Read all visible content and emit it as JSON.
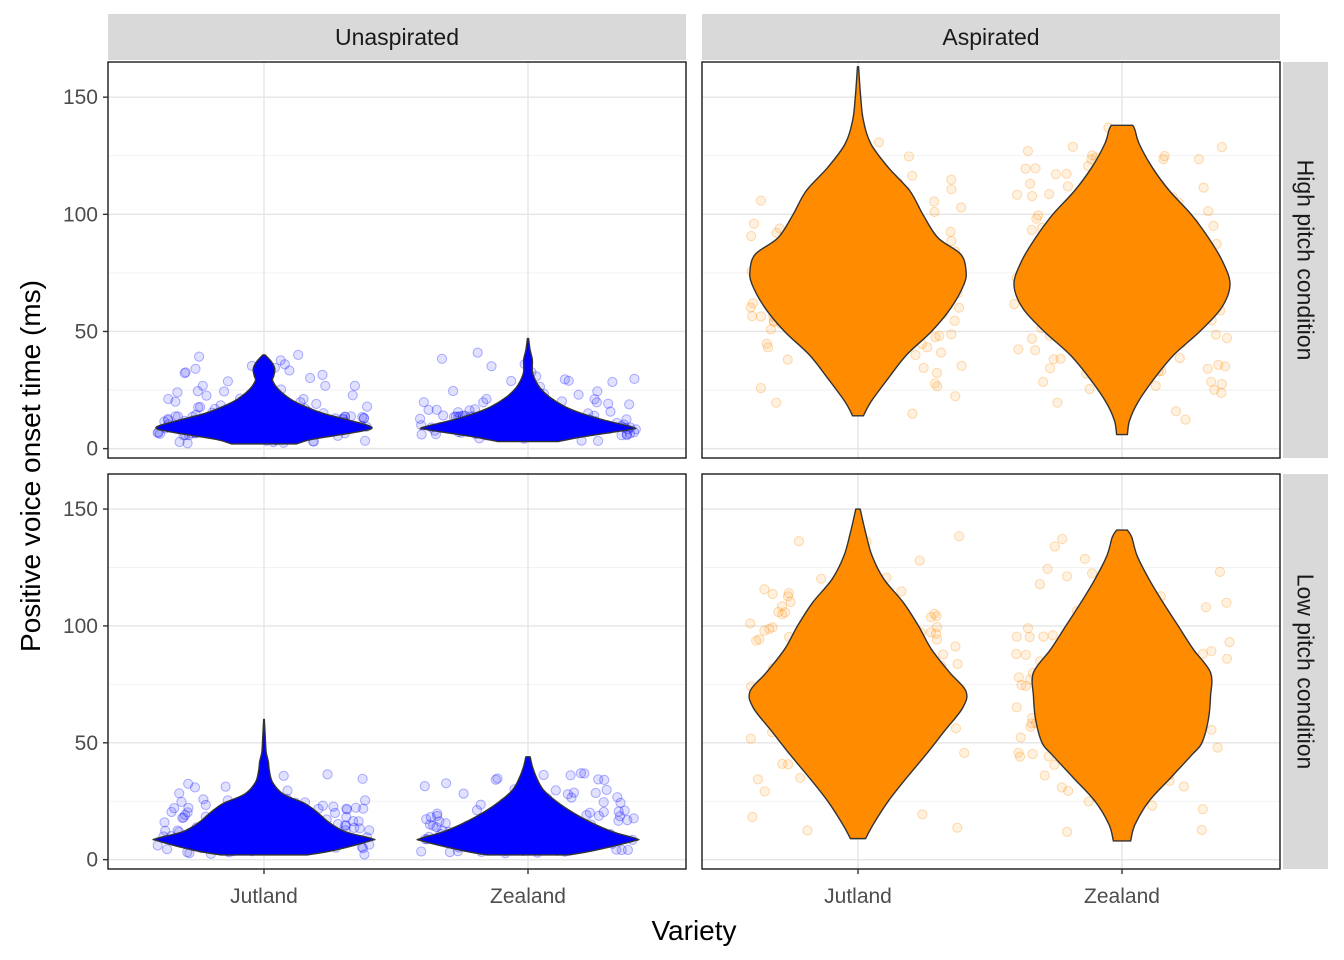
{
  "chart_data": {
    "type": "violin",
    "xlabel": "Variety",
    "ylabel": "Positive voice onset time (ms)",
    "ylim": [
      -4,
      165
    ],
    "y_ticks": [
      0,
      50,
      100,
      150
    ],
    "categories": [
      "Jutland",
      "Zealand"
    ],
    "column_facets": [
      "Unaspirated",
      "Aspirated"
    ],
    "row_facets": [
      "High pitch condition",
      "Low pitch condition"
    ],
    "grid": true,
    "jittered_points": true,
    "colors": {
      "unaspirated_fill": "#0000ff",
      "aspirated_fill": "#ff8c00",
      "violin_outline": "#333333",
      "strip_background": "#d9d9d9",
      "panel_border": "#1a1a1a",
      "grid_major": "#e5e5e5",
      "grid_minor": "#f2f2f2"
    },
    "panels": [
      {
        "row": "High pitch condition",
        "col": "Unaspirated",
        "violins": [
          {
            "category": "Jutland",
            "min": 2,
            "max": 40,
            "profile": [
              [
                2,
                0.3
              ],
              [
                4,
                0.45
              ],
              [
                7,
                0.85
              ],
              [
                9,
                1.0
              ],
              [
                12,
                0.8
              ],
              [
                15,
                0.55
              ],
              [
                18,
                0.38
              ],
              [
                21,
                0.25
              ],
              [
                25,
                0.14
              ],
              [
                29,
                0.08
              ],
              [
                31,
                0.09
              ],
              [
                34,
                0.1
              ],
              [
                37,
                0.07
              ],
              [
                40,
                0.01
              ]
            ]
          },
          {
            "category": "Zealand",
            "min": 3,
            "max": 47,
            "profile": [
              [
                3,
                0.28
              ],
              [
                5,
                0.5
              ],
              [
                8,
                0.92
              ],
              [
                9,
                0.98
              ],
              [
                12,
                0.72
              ],
              [
                15,
                0.5
              ],
              [
                18,
                0.34
              ],
              [
                22,
                0.2
              ],
              [
                26,
                0.11
              ],
              [
                30,
                0.06
              ],
              [
                33,
                0.04
              ],
              [
                38,
                0.04
              ],
              [
                42,
                0.02
              ],
              [
                47,
                0.005
              ]
            ]
          }
        ]
      },
      {
        "row": "High pitch condition",
        "col": "Aspirated",
        "violins": [
          {
            "category": "Jutland",
            "min": 14,
            "max": 163,
            "profile": [
              [
                14,
                0.05
              ],
              [
                20,
                0.12
              ],
              [
                30,
                0.28
              ],
              [
                40,
                0.45
              ],
              [
                50,
                0.68
              ],
              [
                60,
                0.86
              ],
              [
                70,
                0.98
              ],
              [
                76,
                1.0
              ],
              [
                83,
                0.95
              ],
              [
                90,
                0.74
              ],
              [
                100,
                0.6
              ],
              [
                110,
                0.48
              ],
              [
                120,
                0.28
              ],
              [
                130,
                0.12
              ],
              [
                140,
                0.05
              ],
              [
                150,
                0.025
              ],
              [
                163,
                0.005
              ]
            ]
          },
          {
            "category": "Zealand",
            "min": 6,
            "max": 138,
            "profile": [
              [
                6,
                0.05
              ],
              [
                12,
                0.07
              ],
              [
                20,
                0.15
              ],
              [
                30,
                0.3
              ],
              [
                40,
                0.48
              ],
              [
                50,
                0.72
              ],
              [
                60,
                0.92
              ],
              [
                70,
                1.0
              ],
              [
                80,
                0.93
              ],
              [
                90,
                0.8
              ],
              [
                100,
                0.64
              ],
              [
                110,
                0.44
              ],
              [
                120,
                0.28
              ],
              [
                130,
                0.16
              ],
              [
                136,
                0.12
              ],
              [
                138,
                0.1
              ]
            ]
          }
        ]
      },
      {
        "row": "Low pitch condition",
        "col": "Unaspirated",
        "violins": [
          {
            "category": "Jutland",
            "min": 2,
            "max": 60,
            "profile": [
              [
                2,
                0.4
              ],
              [
                4,
                0.65
              ],
              [
                8,
                0.98
              ],
              [
                9,
                1.0
              ],
              [
                12,
                0.75
              ],
              [
                16,
                0.6
              ],
              [
                20,
                0.5
              ],
              [
                24,
                0.38
              ],
              [
                28,
                0.18
              ],
              [
                33,
                0.08
              ],
              [
                38,
                0.05
              ],
              [
                42,
                0.04
              ],
              [
                46,
                0.02
              ],
              [
                52,
                0.012
              ],
              [
                60,
                0.003
              ]
            ]
          },
          {
            "category": "Zealand",
            "min": 2,
            "max": 44,
            "profile": [
              [
                2,
                0.38
              ],
              [
                4,
                0.62
              ],
              [
                8,
                0.98
              ],
              [
                9,
                1.0
              ],
              [
                12,
                0.78
              ],
              [
                16,
                0.58
              ],
              [
                20,
                0.42
              ],
              [
                25,
                0.26
              ],
              [
                30,
                0.14
              ],
              [
                35,
                0.08
              ],
              [
                40,
                0.04
              ],
              [
                44,
                0.02
              ]
            ]
          }
        ]
      },
      {
        "row": "Low pitch condition",
        "col": "Aspirated",
        "violins": [
          {
            "category": "Jutland",
            "min": 9,
            "max": 150,
            "profile": [
              [
                9,
                0.07
              ],
              [
                15,
                0.14
              ],
              [
                25,
                0.28
              ],
              [
                35,
                0.45
              ],
              [
                45,
                0.63
              ],
              [
                55,
                0.8
              ],
              [
                65,
                0.97
              ],
              [
                72,
                1.0
              ],
              [
                80,
                0.85
              ],
              [
                90,
                0.68
              ],
              [
                100,
                0.56
              ],
              [
                110,
                0.42
              ],
              [
                120,
                0.24
              ],
              [
                130,
                0.13
              ],
              [
                140,
                0.07
              ],
              [
                150,
                0.02
              ]
            ]
          },
          {
            "category": "Zealand",
            "min": 8,
            "max": 141,
            "profile": [
              [
                8,
                0.08
              ],
              [
                15,
                0.12
              ],
              [
                25,
                0.25
              ],
              [
                35,
                0.45
              ],
              [
                45,
                0.65
              ],
              [
                50,
                0.74
              ],
              [
                60,
                0.8
              ],
              [
                70,
                0.82
              ],
              [
                80,
                0.82
              ],
              [
                90,
                0.66
              ],
              [
                100,
                0.52
              ],
              [
                110,
                0.38
              ],
              [
                120,
                0.25
              ],
              [
                130,
                0.14
              ],
              [
                138,
                0.09
              ],
              [
                141,
                0.05
              ]
            ]
          }
        ]
      }
    ]
  }
}
